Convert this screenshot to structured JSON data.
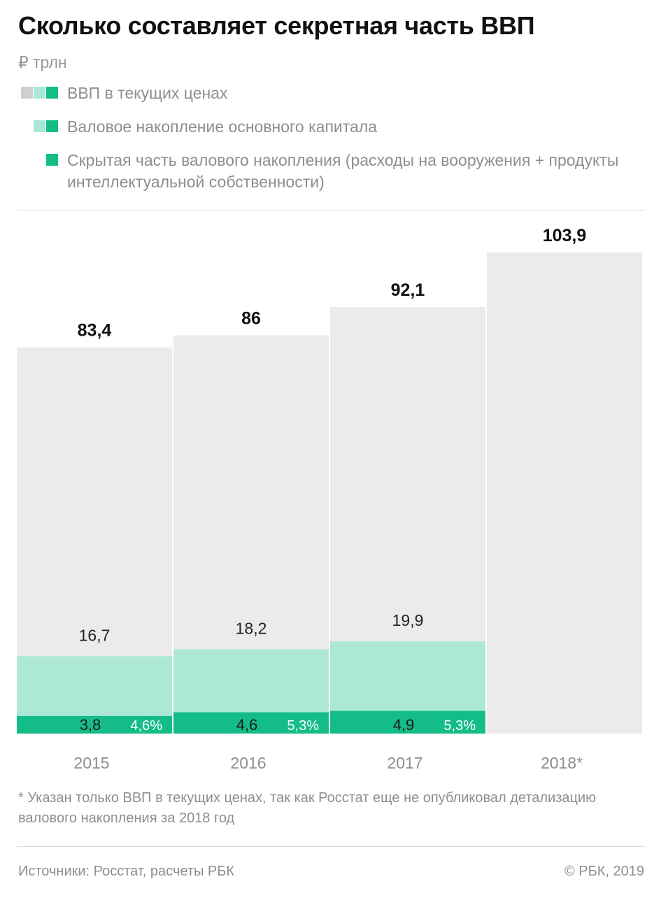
{
  "title": "Сколько составляет секретная часть ВВП",
  "unit": "₽ трлн",
  "legend": [
    {
      "label": "ВВП в текущих ценах",
      "swatches": [
        "#cfcfcf",
        "#a9e8d6",
        "#14bd88"
      ]
    },
    {
      "label": "Валовое накопление основного капитала",
      "swatches": [
        "#a9e8d6",
        "#14bd88"
      ]
    },
    {
      "label": "Скрытая часть валового накопления (расходы на вооружения + продукты интеллектуальной собственности)",
      "swatches": [
        "#14bd88"
      ]
    }
  ],
  "colors": {
    "gdp": "#ebebed",
    "accumulation": "#ade8d6",
    "hidden": "#14bd88"
  },
  "chart_data": {
    "type": "bar",
    "categories": [
      "2015",
      "2016",
      "2017",
      "2018*"
    ],
    "series": [
      {
        "name": "ВВП в текущих ценах",
        "values": [
          83.4,
          86,
          92.1,
          103.9
        ],
        "labels": [
          "83,4",
          "86",
          "92,1",
          "103,9"
        ]
      },
      {
        "name": "Валовое накопление основного капитала",
        "values": [
          16.7,
          18.2,
          19.9,
          null
        ],
        "labels": [
          "16,7",
          "18,2",
          "19,9",
          ""
        ]
      },
      {
        "name": "Скрытая часть валового накопления (расходы на вооружения + продукты интеллектуальной собственности)",
        "values": [
          3.8,
          4.6,
          4.9,
          null
        ],
        "labels": [
          "3,8",
          "4,6",
          "4,9",
          ""
        ]
      }
    ],
    "share_labels": [
      "4,6%",
      "5,3%",
      "5,3%",
      ""
    ],
    "ylim": [
      0,
      103.9
    ]
  },
  "footnote": "* Указан только ВВП в текущих ценах, так как Росстат еще не опубликовал детализацию валового накопления за 2018 год",
  "source": "Источники: Росстат, расчеты РБК",
  "copyright": "© РБК, 2019"
}
